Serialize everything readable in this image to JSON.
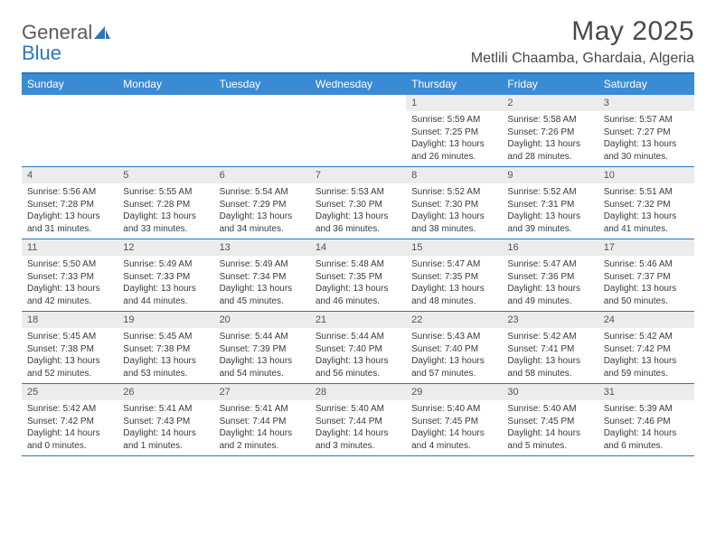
{
  "brand": {
    "part1": "General",
    "part2": "Blue"
  },
  "title": "May 2025",
  "location": "Metlili Chaamba, Ghardaia, Algeria",
  "colors": {
    "header_bg": "#3b8bd4",
    "border": "#2b77c0",
    "daynum_bg": "#ececec",
    "text": "#3a3a3a"
  },
  "dow": [
    "Sunday",
    "Monday",
    "Tuesday",
    "Wednesday",
    "Thursday",
    "Friday",
    "Saturday"
  ],
  "weeks": [
    [
      null,
      null,
      null,
      null,
      {
        "n": "1",
        "sr": "5:59 AM",
        "ss": "7:25 PM",
        "dh": "13",
        "dm": "26"
      },
      {
        "n": "2",
        "sr": "5:58 AM",
        "ss": "7:26 PM",
        "dh": "13",
        "dm": "28"
      },
      {
        "n": "3",
        "sr": "5:57 AM",
        "ss": "7:27 PM",
        "dh": "13",
        "dm": "30"
      }
    ],
    [
      {
        "n": "4",
        "sr": "5:56 AM",
        "ss": "7:28 PM",
        "dh": "13",
        "dm": "31"
      },
      {
        "n": "5",
        "sr": "5:55 AM",
        "ss": "7:28 PM",
        "dh": "13",
        "dm": "33"
      },
      {
        "n": "6",
        "sr": "5:54 AM",
        "ss": "7:29 PM",
        "dh": "13",
        "dm": "34"
      },
      {
        "n": "7",
        "sr": "5:53 AM",
        "ss": "7:30 PM",
        "dh": "13",
        "dm": "36"
      },
      {
        "n": "8",
        "sr": "5:52 AM",
        "ss": "7:30 PM",
        "dh": "13",
        "dm": "38"
      },
      {
        "n": "9",
        "sr": "5:52 AM",
        "ss": "7:31 PM",
        "dh": "13",
        "dm": "39"
      },
      {
        "n": "10",
        "sr": "5:51 AM",
        "ss": "7:32 PM",
        "dh": "13",
        "dm": "41"
      }
    ],
    [
      {
        "n": "11",
        "sr": "5:50 AM",
        "ss": "7:33 PM",
        "dh": "13",
        "dm": "42"
      },
      {
        "n": "12",
        "sr": "5:49 AM",
        "ss": "7:33 PM",
        "dh": "13",
        "dm": "44"
      },
      {
        "n": "13",
        "sr": "5:49 AM",
        "ss": "7:34 PM",
        "dh": "13",
        "dm": "45"
      },
      {
        "n": "14",
        "sr": "5:48 AM",
        "ss": "7:35 PM",
        "dh": "13",
        "dm": "46"
      },
      {
        "n": "15",
        "sr": "5:47 AM",
        "ss": "7:35 PM",
        "dh": "13",
        "dm": "48"
      },
      {
        "n": "16",
        "sr": "5:47 AM",
        "ss": "7:36 PM",
        "dh": "13",
        "dm": "49"
      },
      {
        "n": "17",
        "sr": "5:46 AM",
        "ss": "7:37 PM",
        "dh": "13",
        "dm": "50"
      }
    ],
    [
      {
        "n": "18",
        "sr": "5:45 AM",
        "ss": "7:38 PM",
        "dh": "13",
        "dm": "52"
      },
      {
        "n": "19",
        "sr": "5:45 AM",
        "ss": "7:38 PM",
        "dh": "13",
        "dm": "53"
      },
      {
        "n": "20",
        "sr": "5:44 AM",
        "ss": "7:39 PM",
        "dh": "13",
        "dm": "54"
      },
      {
        "n": "21",
        "sr": "5:44 AM",
        "ss": "7:40 PM",
        "dh": "13",
        "dm": "56"
      },
      {
        "n": "22",
        "sr": "5:43 AM",
        "ss": "7:40 PM",
        "dh": "13",
        "dm": "57"
      },
      {
        "n": "23",
        "sr": "5:42 AM",
        "ss": "7:41 PM",
        "dh": "13",
        "dm": "58"
      },
      {
        "n": "24",
        "sr": "5:42 AM",
        "ss": "7:42 PM",
        "dh": "13",
        "dm": "59"
      }
    ],
    [
      {
        "n": "25",
        "sr": "5:42 AM",
        "ss": "7:42 PM",
        "dh": "14",
        "dm": "0"
      },
      {
        "n": "26",
        "sr": "5:41 AM",
        "ss": "7:43 PM",
        "dh": "14",
        "dm": "1"
      },
      {
        "n": "27",
        "sr": "5:41 AM",
        "ss": "7:44 PM",
        "dh": "14",
        "dm": "2"
      },
      {
        "n": "28",
        "sr": "5:40 AM",
        "ss": "7:44 PM",
        "dh": "14",
        "dm": "3"
      },
      {
        "n": "29",
        "sr": "5:40 AM",
        "ss": "7:45 PM",
        "dh": "14",
        "dm": "4"
      },
      {
        "n": "30",
        "sr": "5:40 AM",
        "ss": "7:45 PM",
        "dh": "14",
        "dm": "5"
      },
      {
        "n": "31",
        "sr": "5:39 AM",
        "ss": "7:46 PM",
        "dh": "14",
        "dm": "6"
      }
    ]
  ],
  "labels": {
    "sunrise": "Sunrise: ",
    "sunset": "Sunset: ",
    "daylight_prefix": "Daylight: ",
    "hours_word": " hours",
    "and_word": "and ",
    "minutes_word": " minutes."
  }
}
